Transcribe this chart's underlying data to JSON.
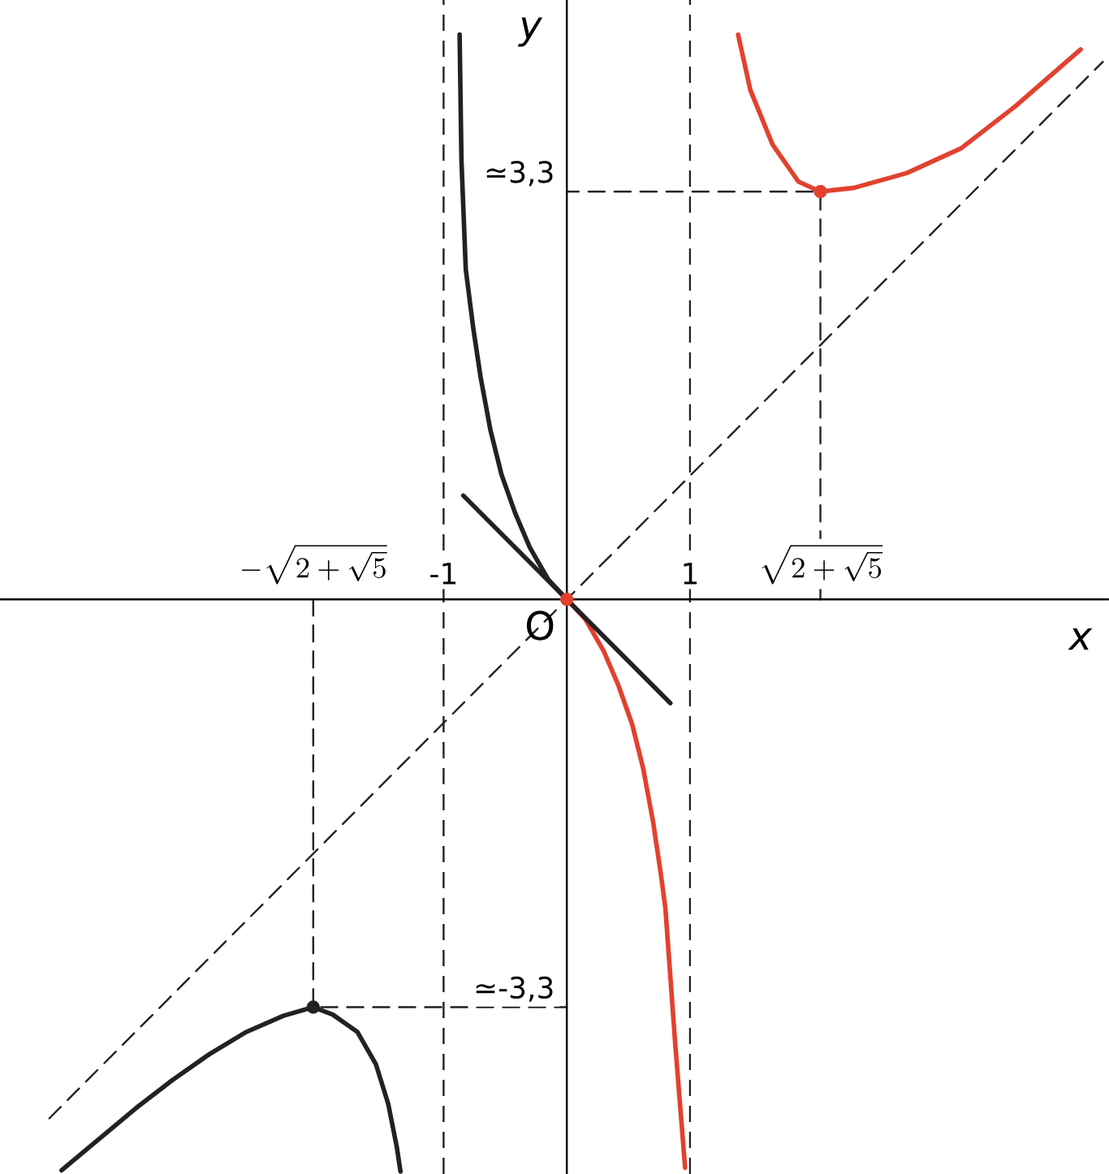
{
  "chart_data": {
    "type": "line",
    "xlabel": "x",
    "ylabel": "y",
    "xlim": [
      -4.6,
      4.4
    ],
    "ylim": [
      -4.65,
      4.85
    ],
    "xticks": [
      {
        "value": -2.058,
        "label": "-\\sqrt{2+\\sqrt{5}}"
      },
      -1,
      1,
      {
        "value": 2.058,
        "label": "\\sqrt{2+\\sqrt{5}}"
      }
    ],
    "yticks": [
      {
        "value": -3.3,
        "label": "≃-3,3"
      },
      {
        "value": 3.3,
        "label": "≃3,3"
      }
    ],
    "ref_lines": [
      {
        "axis": "x",
        "value": -1,
        "color": "#222222",
        "line_style": "dashed"
      },
      {
        "axis": "x",
        "value": 1,
        "color": "#222222",
        "line_style": "dashed"
      }
    ],
    "annotations": [
      {
        "text": "O",
        "x": 0,
        "y": 0
      }
    ],
    "series": [
      {
        "color": "#222222",
        "line_style": "solid",
        "x": [
          -4.1,
          -3.8,
          -3.5,
          -3.2,
          -2.9,
          -2.6,
          -2.3,
          -2.058,
          -1.9,
          -1.7,
          -1.55,
          -1.45,
          -1.38,
          -1.35
        ],
        "values": [
          -4.62,
          -4.37,
          -4.12,
          -3.89,
          -3.68,
          -3.5,
          -3.37,
          -3.3,
          -3.36,
          -3.5,
          -3.76,
          -4.08,
          -4.43,
          -4.63
        ]
      },
      {
        "color": "#222222",
        "line_style": "solid",
        "x": [
          -0.87,
          -0.855,
          -0.82,
          -0.76,
          -0.7,
          -0.62,
          -0.53,
          -0.42,
          -0.3,
          -0.15,
          0
        ],
        "values": [
          4.57,
          3.55,
          2.67,
          2.2,
          1.8,
          1.37,
          1.01,
          0.7,
          0.42,
          0.16,
          0
        ]
      },
      {
        "color": "#e2412f",
        "line_style": "solid",
        "x": [
          0,
          0.15,
          0.3,
          0.42,
          0.53,
          0.62,
          0.7,
          0.76,
          0.8,
          0.88,
          0.96
        ],
        "values": [
          0,
          -0.16,
          -0.42,
          -0.7,
          -1.01,
          -1.37,
          -1.8,
          -2.2,
          -2.5,
          -3.6,
          -4.6
        ]
      },
      {
        "color": "#e2412f",
        "line_style": "solid",
        "x": [
          1.39,
          1.49,
          1.67,
          1.88,
          2.058,
          2.33,
          2.76,
          3.2,
          3.64,
          4.17
        ],
        "values": [
          4.57,
          4.12,
          3.68,
          3.38,
          3.3,
          3.33,
          3.45,
          3.65,
          3.99,
          4.45
        ]
      },
      {
        "color": "#222222",
        "line_style": "dashed",
        "x": [
          -4.2,
          4.35
        ],
        "values": [
          -4.2,
          4.35
        ]
      },
      {
        "color": "#222222",
        "line_style": "solid",
        "x": [
          -0.84,
          0.84
        ],
        "values": [
          0.84,
          -0.84
        ]
      },
      {
        "color": "#222222",
        "line_style": "dashed",
        "x": [
          -2.058,
          -2.058,
          0
        ],
        "values": [
          0,
          -3.3,
          -3.3
        ]
      },
      {
        "color": "#222222",
        "line_style": "dashed",
        "x": [
          2.058,
          2.058,
          0
        ],
        "values": [
          0,
          3.3,
          3.3
        ]
      },
      {
        "type": "scatter",
        "marker": "circle",
        "color": "#e2412f",
        "x": [
          0,
          2.058
        ],
        "values": [
          0,
          3.3
        ]
      },
      {
        "type": "scatter",
        "marker": "circle",
        "color": "#222222",
        "x": [
          -2.058
        ],
        "values": [
          -3.3
        ]
      }
    ]
  }
}
